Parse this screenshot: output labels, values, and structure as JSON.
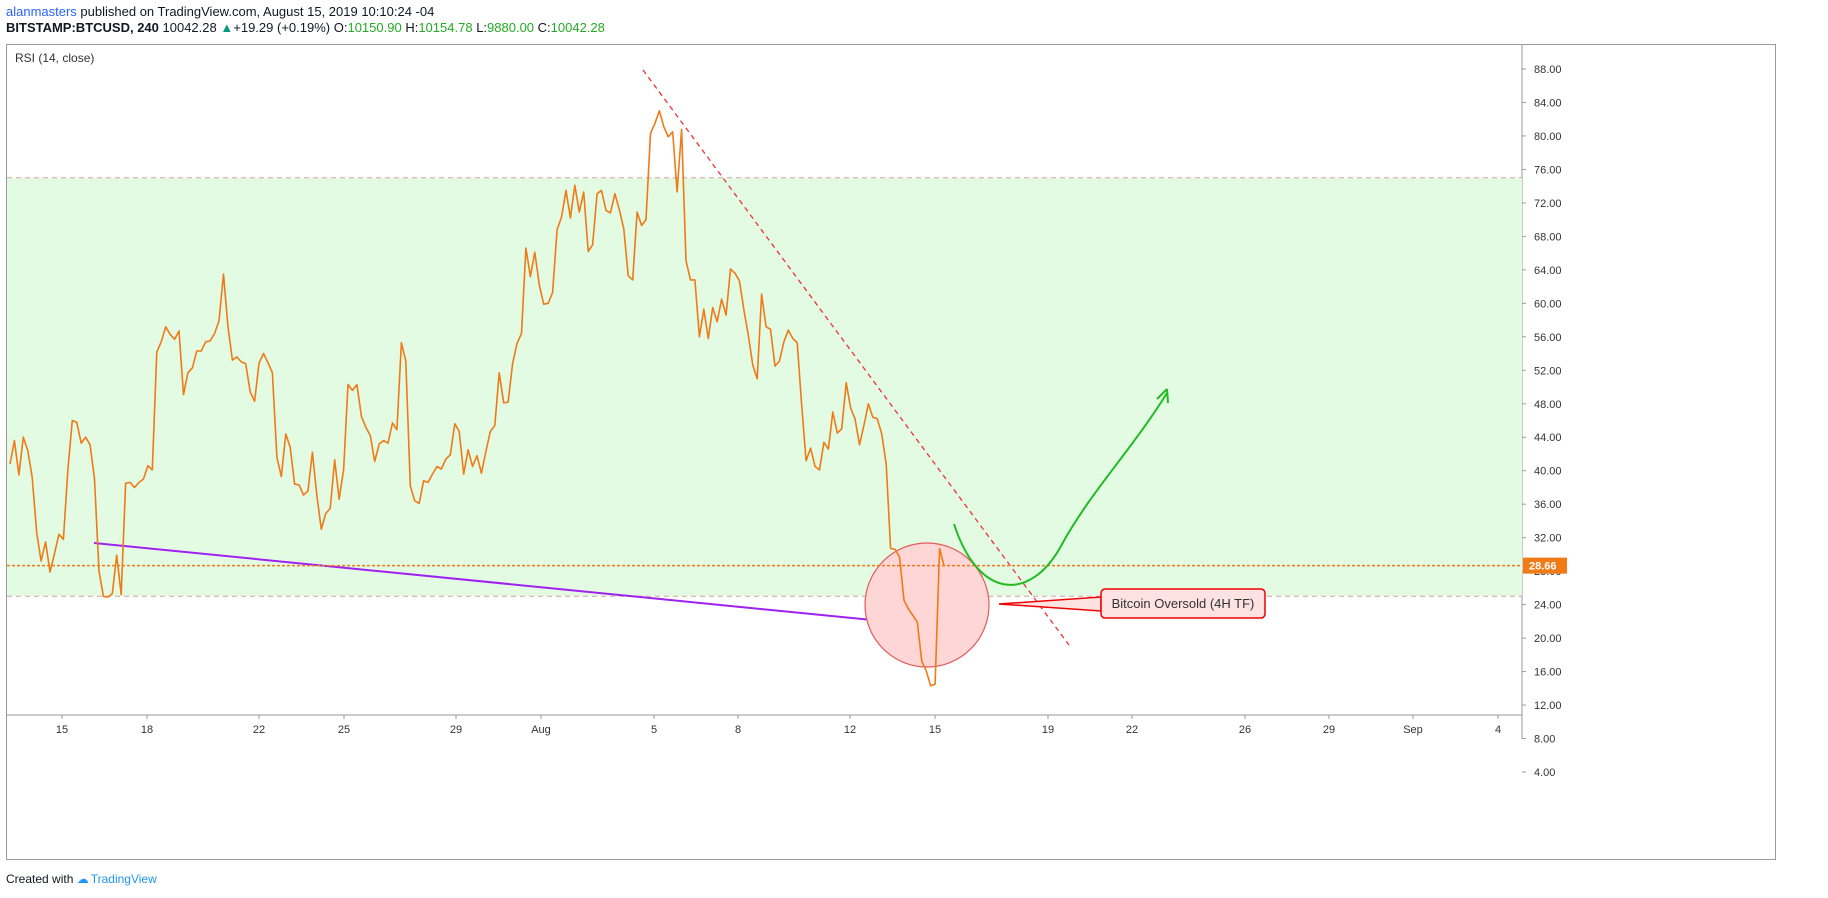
{
  "header": {
    "author": "alanmasters",
    "published_text": " published on TradingView.com, August 15, 2019 10:10:24 -04",
    "symbol": "BITSTAMP:BTCUSD, 240",
    "last_price": "10042.28",
    "change": "+19.29 (+0.19%)",
    "open_label": "O:",
    "open": "10150.90",
    "high_label": "H:",
    "high": "10154.78",
    "low_label": "L:",
    "low": "9880.00",
    "close_label": "C:",
    "close": "10042.28"
  },
  "indicator_label": "RSI (14, close)",
  "footer": {
    "created_with": "Created with",
    "brand": "TradingView"
  },
  "colors": {
    "rsi_line": "#ef7a16",
    "band_fill": "#e3fbe3",
    "support_line": "#a020f0",
    "trend_line": "#e33",
    "projection": "#22bb22",
    "highlight_circle": "#ffd6d6",
    "last_value_badge": "#ef7a16"
  },
  "chart_data": {
    "type": "line",
    "title": "",
    "xlabel": "",
    "ylabel": "",
    "ylim": [
      0,
      92
    ],
    "y_ticks": [
      "4.00",
      "8.00",
      "12.00",
      "16.00",
      "20.00",
      "24.00",
      "28.00",
      "32.00",
      "36.00",
      "40.00",
      "44.00",
      "48.00",
      "52.00",
      "56.00",
      "60.00",
      "64.00",
      "68.00",
      "72.00",
      "76.00",
      "80.00",
      "84.00",
      "88.00"
    ],
    "x_ticks": [
      "15",
      "18",
      "22",
      "25",
      "29",
      "Aug",
      "5",
      "8",
      "12",
      "15",
      "19",
      "22",
      "26",
      "29",
      "Sep",
      "4"
    ],
    "bands": {
      "upper": 75,
      "lower": 25
    },
    "last_value": 28.66,
    "last_value_label": "28.66",
    "series": [
      {
        "values": [
          40.8,
          43.6,
          39.5,
          44,
          42.4,
          39.2,
          32.6,
          29.2,
          31.5,
          27.9,
          30.1,
          32.4,
          31.8,
          40,
          46,
          45.8,
          43.3,
          44,
          43.1,
          39,
          28,
          25,
          24.9,
          25.3,
          29.9,
          25.2,
          38.5,
          38.6,
          38,
          38.6,
          39,
          40.6,
          40.1,
          54.2,
          55.4,
          57.2,
          56.3,
          55.7,
          56.7,
          49.1,
          51.7,
          52.3,
          54.3,
          54.3,
          55.4,
          55.5,
          56.4,
          57.9,
          63.5,
          57.3,
          53.2,
          53.6,
          53,
          52.8,
          49.4,
          48.3,
          52.9,
          54,
          52.9,
          51.7,
          41.6,
          39.3,
          44.4,
          42.8,
          38.4,
          38.3,
          37.1,
          37.6,
          42.2,
          37,
          33,
          34.9,
          35.5,
          41.3,
          36.6,
          40.1,
          50.3,
          49.6,
          50.3,
          46.5,
          45.2,
          44.2,
          41.1,
          43.2,
          43.6,
          43.3,
          45.7,
          44.9,
          55.3,
          53.1,
          38.2,
          36.4,
          36.1,
          38.8,
          38.6,
          39.6,
          40.5,
          40.2,
          41.4,
          41.9,
          45.6,
          44.7,
          39.6,
          42.5,
          40.5,
          41.8,
          39.7,
          42.3,
          44.7,
          45.4,
          51.7,
          48.1,
          48.2,
          52.8,
          55.2,
          56.4,
          66.6,
          63.2,
          66.1,
          62.2,
          59.9,
          60,
          61.3,
          68.8,
          70.3,
          73.5,
          70.2,
          74.1,
          70.9,
          73.3,
          66.2,
          67,
          73.1,
          73.5,
          71.1,
          70.8,
          73.1,
          71.2,
          68.9,
          63.3,
          62.8,
          70.9,
          69.3,
          70,
          80.3,
          81.5,
          83,
          81.1,
          79.9,
          80.5,
          73.3,
          80.8,
          65.1,
          62.8,
          62.8,
          56,
          59.3,
          55.8,
          59.5,
          57.8,
          60.5,
          58.6,
          64.1,
          63.6,
          62.7,
          59.2,
          56.2,
          52.6,
          51,
          61.1,
          57.2,
          56.9,
          52.5,
          53.1,
          55.4,
          56.8,
          55.8,
          55.3,
          47.8,
          41.2,
          42.7,
          40.5,
          40.1,
          43.4,
          42.6,
          47,
          44.5,
          45,
          50.5,
          47.5,
          46.2,
          43.1,
          45.4,
          48,
          46.4,
          46.2,
          44.4,
          40.8,
          30.7,
          30.6,
          29.7,
          24.5,
          23.5,
          22.7,
          21.9,
          17.2,
          16.1,
          14.3,
          14.5,
          30.7,
          28.66
        ]
      }
    ],
    "annotation": "Bitcoin Oversold (4H TF)"
  }
}
